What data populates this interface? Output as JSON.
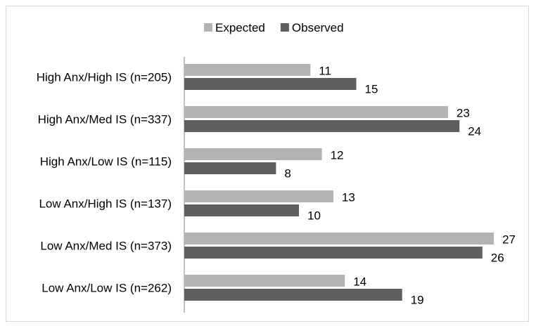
{
  "chart_data": {
    "type": "bar",
    "orientation": "horizontal",
    "title": "",
    "xlabel": "",
    "ylabel": "",
    "categories": [
      "High Anx/High IS (n=205)",
      "High Anx/Med IS (n=337)",
      "High Anx/Low IS (n=115)",
      "Low Anx/High IS (n=137)",
      "Low Anx/Med IS (n=373)",
      "Low Anx/Low IS (n=262)"
    ],
    "series": [
      {
        "name": "Expected",
        "color": "#b3b3b3",
        "values": [
          11,
          23,
          12,
          13,
          27,
          14
        ]
      },
      {
        "name": "Observed",
        "color": "#5f5f5f",
        "values": [
          15,
          24,
          8,
          10,
          26,
          19
        ]
      }
    ],
    "xlim": [
      0,
      30
    ],
    "grid": false,
    "data_labels": true,
    "legend_position": "top"
  }
}
